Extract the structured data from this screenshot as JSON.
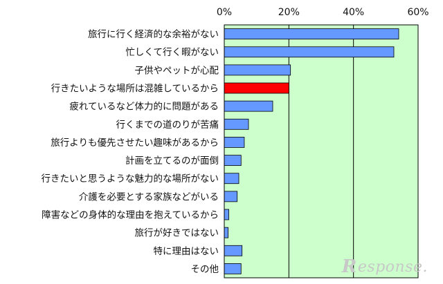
{
  "chart_data": {
    "type": "bar",
    "orientation": "horizontal",
    "categories": [
      "旅行に行く経済的な余裕がない",
      "忙しくて行く暇がない",
      "子供やペットが心配",
      "行きたいような場所は混雑しているから",
      "疲れているなど体力的に問題がある",
      "行くまでの道のりが苦痛",
      "旅行よりも優先させたい趣味があるから",
      "計画を立てるのが面倒",
      "行きたいと思うような魅力的な場所がない",
      "介護を必要とする家族などがいる",
      "障害などの身体的な理由を抱えているから",
      "旅行が好きではない",
      "特に理由はない",
      "その他"
    ],
    "values": [
      54.0,
      52.5,
      20.5,
      20.0,
      15.0,
      7.5,
      6.2,
      5.2,
      4.5,
      4.0,
      1.4,
      1.2,
      5.5,
      5.2
    ],
    "highlight_index": 3,
    "xlim": [
      0,
      60
    ],
    "xticks": [
      "0%",
      "20%",
      "40%",
      "60%"
    ],
    "xtick_values": [
      0,
      20,
      40,
      60
    ],
    "grid": true,
    "colors": {
      "plot_bg": "#ccffcc",
      "bar": "#6699ff",
      "bar_highlight": "#ff0000",
      "bar_stroke": "#000000",
      "grid": "#000000"
    },
    "title": "",
    "xlabel": "",
    "ylabel": ""
  },
  "watermark": {
    "mark": "R",
    "text": "esponse."
  }
}
